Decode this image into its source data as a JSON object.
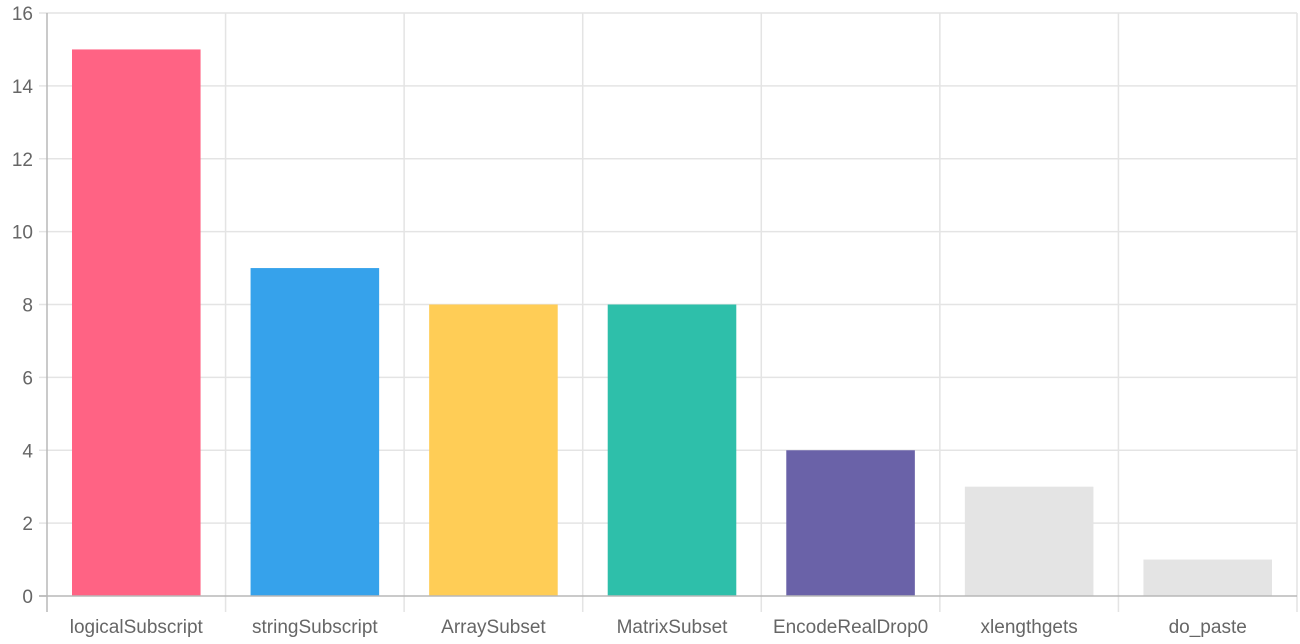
{
  "chart_data": {
    "type": "bar",
    "title": "",
    "xlabel": "",
    "ylabel": "",
    "categories": [
      "logicalSubscript",
      "stringSubscript",
      "ArraySubset",
      "MatrixSubset",
      "EncodeRealDrop0",
      "xlengthgets",
      "do_paste"
    ],
    "values": [
      15,
      9,
      8,
      8,
      4,
      3,
      1
    ],
    "colors": [
      "#ff6384",
      "#36a2eb",
      "#ffcd56",
      "#2ebfaa",
      "#6a62a8",
      "#e4e4e4",
      "#e4e4e4"
    ],
    "ylim": [
      0,
      16
    ],
    "yticks": [
      0,
      2,
      4,
      6,
      8,
      10,
      12,
      14,
      16
    ],
    "grid": true,
    "legend": "none"
  }
}
